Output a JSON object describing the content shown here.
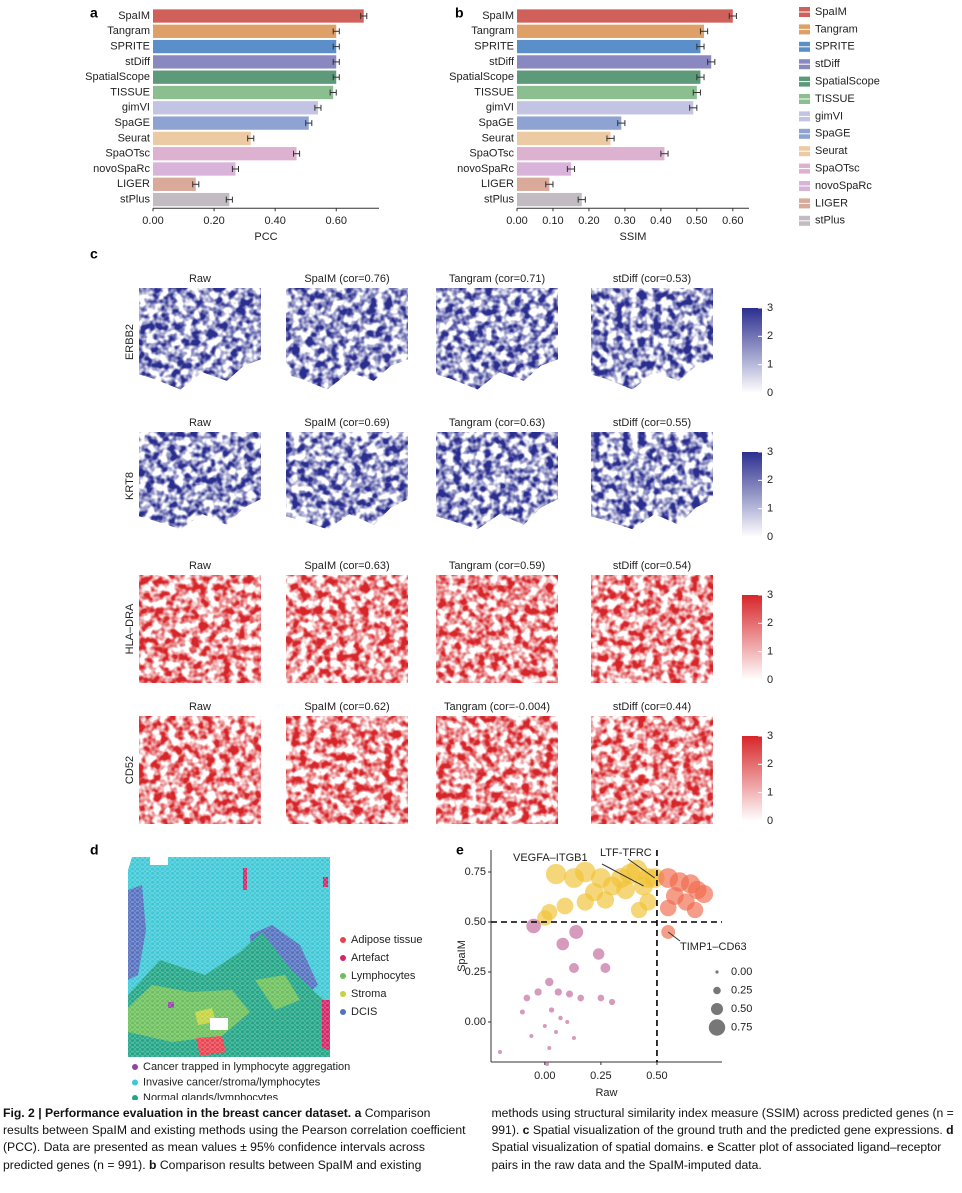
{
  "chart_data": [
    {
      "type": "barh",
      "label": "a",
      "x_label": "PCC",
      "categories": [
        "SpaIM",
        "Tangram",
        "SPRITE",
        "stDiff",
        "SpatialScope",
        "TISSUE",
        "gimVI",
        "SpaGE",
        "Seurat",
        "SpaOTsc",
        "novoSpaRc",
        "LIGER",
        "stPlus"
      ],
      "values": [
        0.69,
        0.6,
        0.6,
        0.6,
        0.6,
        0.59,
        0.54,
        0.51,
        0.32,
        0.47,
        0.27,
        0.14,
        0.25
      ],
      "errors": [
        0.01,
        0.01,
        0.01,
        0.01,
        0.01,
        0.01,
        0.01,
        0.01,
        0.01,
        0.01,
        0.01,
        0.01,
        0.01
      ],
      "colors": [
        "#d0605a",
        "#dea066",
        "#5b8fc9",
        "#8a88c0",
        "#5c9a7a",
        "#8bbf8f",
        "#c3c3e3",
        "#8ea3d2",
        "#eccaa3",
        "#dcb2d0",
        "#d9b3d9",
        "#d9a99a",
        "#c2bbc2"
      ],
      "xlim": [
        0,
        0.74
      ],
      "xticks": [
        {
          "value": 0,
          "label": "0.00"
        },
        {
          "value": 0.2,
          "label": "0.20"
        },
        {
          "value": 0.4,
          "label": "0.40"
        },
        {
          "value": 0.6,
          "label": "0.60"
        }
      ],
      "legend": "right"
    },
    {
      "type": "barh",
      "label": "b",
      "x_label": "SSIM",
      "categories": [
        "SpaIM",
        "Tangram",
        "SPRITE",
        "stDiff",
        "SpatialScope",
        "TISSUE",
        "gimVI",
        "SpaGE",
        "Seurat",
        "SpaOTsc",
        "novoSpaRc",
        "LIGER",
        "stPlus"
      ],
      "values": [
        0.6,
        0.52,
        0.51,
        0.54,
        0.51,
        0.5,
        0.49,
        0.29,
        0.26,
        0.41,
        0.15,
        0.09,
        0.18
      ],
      "errors": [
        0.01,
        0.01,
        0.01,
        0.01,
        0.01,
        0.01,
        0.01,
        0.01,
        0.01,
        0.01,
        0.01,
        0.01,
        0.01
      ],
      "colors": [
        "#d0605a",
        "#dea066",
        "#5b8fc9",
        "#8a88c0",
        "#5c9a7a",
        "#8bbf8f",
        "#c3c3e3",
        "#8ea3d2",
        "#eccaa3",
        "#dcb2d0",
        "#d9b3d9",
        "#d9a99a",
        "#c2bbc2"
      ],
      "xlim": [
        0,
        0.645
      ],
      "xticks": [
        {
          "value": 0,
          "label": "0.00"
        },
        {
          "value": 0.1,
          "label": "0.10"
        },
        {
          "value": 0.2,
          "label": "0.20"
        },
        {
          "value": 0.3,
          "label": "0.30"
        },
        {
          "value": 0.4,
          "label": "0.40"
        },
        {
          "value": 0.5,
          "label": "0.50"
        },
        {
          "value": 0.6,
          "label": "0.60"
        }
      ]
    },
    {
      "type": "spatial",
      "label": "c",
      "rows": [
        {
          "gene": "ERBB2",
          "color": "#2c2f8f",
          "titles": [
            "Raw",
            "SpaIM (cor=0.76)",
            "Tangram (cor=0.71)",
            "stDiff (cor=0.53)"
          ]
        },
        {
          "gene": "KRT8",
          "color": "#2c2f8f",
          "titles": [
            "Raw",
            "SpaIM (cor=0.69)",
            "Tangram (cor=0.63)",
            "stDiff (cor=0.55)"
          ]
        },
        {
          "gene": "HLA–DRA",
          "color": "#d7262a",
          "titles": [
            "Raw",
            "SpaIM (cor=0.63)",
            "Tangram (cor=0.59)",
            "stDiff (cor=0.54)"
          ]
        },
        {
          "gene": "CD52",
          "color": "#d7262a",
          "titles": [
            "Raw",
            "SpaIM (cor=0.62)",
            "Tangram (cor=-0.004)",
            "stDiff (cor=0.44)"
          ]
        }
      ],
      "colorbar_lim": [
        0,
        3
      ],
      "colorbar_ticks": [
        0,
        1,
        2,
        3
      ]
    },
    {
      "type": "domains",
      "label": "d",
      "domains": [
        {
          "name": "Adipose tissue",
          "color": "#e8424f"
        },
        {
          "name": "Artefact",
          "color": "#d42466"
        },
        {
          "name": "Lymphocytes",
          "color": "#6cc05c"
        },
        {
          "name": "Stroma",
          "color": "#c3d43e"
        },
        {
          "name": "DCIS",
          "color": "#5470bf"
        },
        {
          "name": "Cancer trapped in lymphocyte aggregation",
          "color": "#9444a4"
        },
        {
          "name": "Invasive cancer/stroma/lymphocytes",
          "color": "#3ec8d6"
        },
        {
          "name": "Normal glands/lymphocytes",
          "color": "#21a585"
        }
      ]
    },
    {
      "type": "scatter",
      "label": "e",
      "x_label": "Raw",
      "y_label": "SpaIM",
      "x": [
        0.05,
        0.13,
        0.18,
        0.25,
        0.3,
        0.34,
        0.38,
        0.41,
        0.44,
        0.46,
        0.49,
        0.36,
        0.22,
        0.27,
        0.18,
        0.09,
        0.02,
        0.0,
        0.46,
        0.42,
        0.55,
        0.6,
        0.65,
        0.68,
        0.71,
        0.58,
        0.63,
        0.67,
        0.55,
        0.55,
        -0.05,
        0.14,
        0.08,
        0.24,
        0.13,
        0.27,
        0.02,
        -0.03,
        0.06,
        0.11,
        0.16,
        0.25,
        0.3,
        -0.08,
        -0.1,
        0.03,
        0.07,
        0.1,
        0.0,
        0.05,
        -0.06,
        0.13,
        0.02,
        -0.2,
        0.01
      ],
      "values": [
        0.74,
        0.72,
        0.75,
        0.72,
        0.68,
        0.72,
        0.74,
        0.76,
        0.68,
        0.72,
        0.72,
        0.66,
        0.65,
        0.61,
        0.6,
        0.58,
        0.55,
        0.52,
        0.6,
        0.56,
        0.72,
        0.7,
        0.69,
        0.66,
        0.64,
        0.63,
        0.6,
        0.56,
        0.57,
        0.45,
        0.48,
        0.45,
        0.39,
        0.34,
        0.27,
        0.27,
        0.2,
        0.15,
        0.15,
        0.14,
        0.12,
        0.12,
        0.1,
        0.12,
        0.05,
        0.06,
        0.02,
        0.0,
        -0.02,
        -0.05,
        -0.07,
        -0.08,
        -0.13,
        -0.15,
        -0.21
      ],
      "sizes": [
        0.74,
        0.72,
        0.75,
        0.72,
        0.68,
        0.72,
        0.74,
        0.76,
        0.68,
        0.72,
        0.72,
        0.66,
        0.65,
        0.61,
        0.6,
        0.58,
        0.55,
        0.52,
        0.6,
        0.56,
        0.72,
        0.7,
        0.69,
        0.66,
        0.64,
        0.63,
        0.6,
        0.56,
        0.57,
        0.45,
        0.48,
        0.45,
        0.39,
        0.34,
        0.27,
        0.27,
        0.2,
        0.15,
        0.15,
        0.14,
        0.12,
        0.12,
        0.1,
        0.12,
        0.05,
        0.06,
        0.02,
        0,
        0,
        0,
        0,
        0,
        0,
        0,
        0
      ],
      "xlim": [
        -0.24,
        0.79
      ],
      "ylim": [
        -0.2,
        0.86
      ],
      "xticks": [
        {
          "value": 0,
          "label": "0.00"
        },
        {
          "value": 0.25,
          "label": "0.25"
        },
        {
          "value": 0.5,
          "label": "0.50"
        }
      ],
      "yticks": [
        {
          "value": 0,
          "label": "0.00"
        },
        {
          "value": 0.25,
          "label": "0.25"
        },
        {
          "value": 0.5,
          "label": "0.50"
        },
        {
          "value": 0.75,
          "label": "0.75"
        }
      ],
      "hline": 0.5,
      "vline": 0.5,
      "quadrant_colors": {
        "low": "#c0649a",
        "left": "#f0c232",
        "right": "#f0684a"
      },
      "size_ticks": [
        {
          "value": 0,
          "label": "0.00"
        },
        {
          "value": 0.25,
          "label": "0.25"
        },
        {
          "value": 0.5,
          "label": "0.50"
        },
        {
          "value": 0.75,
          "label": "0.75"
        }
      ],
      "annotations": [
        {
          "text": "VEGFA–ITGB1",
          "point": 8
        },
        {
          "text": "LTF-TFRC",
          "point": 10
        },
        {
          "text": "TIMP1–CD63",
          "point": 29
        }
      ]
    }
  ],
  "caption": {
    "title": "Fig. 2 | Performance evaluation in the breast cancer dataset.",
    "parts": [
      {
        "label": "a",
        "text": "Comparison results between SpaIM and existing methods using the Pearson correlation coefficient (PCC). Data are presented as mean values ± 95% confidence intervals across predicted genes (n = 991)."
      },
      {
        "label": "b",
        "text": "Comparison results between SpaIM and existing methods using structural similarity index measure (SSIM) across predicted genes (n = 991)."
      },
      {
        "label": "c",
        "text": "Spatial visualization of the ground truth and the predicted gene expressions."
      },
      {
        "label": "d",
        "text": "Spatial visualization of spatial domains."
      },
      {
        "label": "e",
        "text": "Scatter plot of associated ligand–receptor pairs in the raw data and the SpaIM-imputed data."
      }
    ]
  }
}
